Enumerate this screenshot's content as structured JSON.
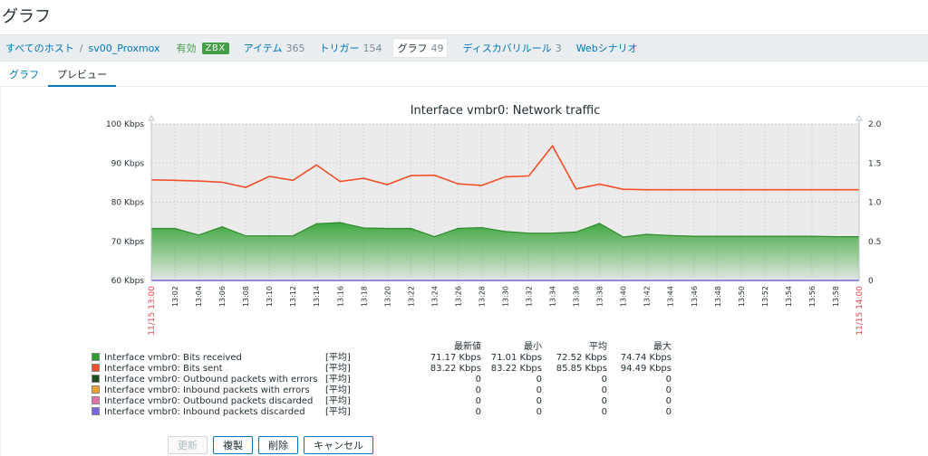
{
  "page_title": "グラフ",
  "breadcrumb": {
    "all_hosts": "すべてのホスト",
    "separator": "/",
    "host": "sv00_Proxmox",
    "status": "有効",
    "zbx": "ZBX"
  },
  "nav": [
    {
      "label": "アイテム",
      "count": "365",
      "active": false
    },
    {
      "label": "トリガー",
      "count": "154",
      "active": false
    },
    {
      "label": "グラフ",
      "count": "49",
      "active": true
    },
    {
      "label": "ディスカバリルール",
      "count": "3",
      "active": false
    },
    {
      "label": "Webシナリオ",
      "count": "",
      "active": false
    }
  ],
  "tabs": [
    {
      "label": "グラフ",
      "active": false
    },
    {
      "label": "プレビュー",
      "active": true
    }
  ],
  "chart_data": {
    "type": "area",
    "title": "Interface vmbr0: Network traffic",
    "x_start_label": "11/15 13:00",
    "x_end_label": "11/15 14:00",
    "x_ticks": [
      "13:02",
      "13:04",
      "13:06",
      "13:08",
      "13:10",
      "13:12",
      "13:14",
      "13:16",
      "13:18",
      "13:20",
      "13:22",
      "13:24",
      "13:26",
      "13:28",
      "13:30",
      "13:32",
      "13:34",
      "13:36",
      "13:38",
      "13:40",
      "13:42",
      "13:44",
      "13:46",
      "13:48",
      "13:50",
      "13:52",
      "13:54",
      "13:56",
      "13:58"
    ],
    "y_left_ticks": [
      "100 Kbps",
      "90 Kbps",
      "80 Kbps",
      "70 Kbps",
      "60 Kbps"
    ],
    "y_left_range": [
      60,
      100
    ],
    "y_right_ticks": [
      "2.0",
      "1.5",
      "1.0",
      "0.5",
      "0"
    ],
    "y_right_range": [
      0,
      2
    ],
    "x_minutes": [
      0,
      2,
      4,
      6,
      8,
      10,
      12,
      14,
      16,
      18,
      20,
      22,
      24,
      26,
      28,
      30,
      32,
      34,
      36,
      38,
      40,
      42,
      44,
      46,
      48,
      50,
      52,
      54,
      56,
      58,
      60
    ],
    "series": [
      {
        "name": "Interface vmbr0: Bits received",
        "color": "#2ca02c",
        "draw": "filled",
        "values": [
          73.3,
          73.3,
          71.6,
          73.7,
          71.4,
          71.4,
          71.4,
          74.5,
          74.8,
          73.4,
          73.3,
          73.3,
          71.2,
          73.3,
          73.5,
          72.5,
          72.1,
          72.1,
          72.4,
          74.6,
          71.1,
          71.8,
          71.5,
          71.3,
          71.3,
          71.3,
          71.3,
          71.3,
          71.3,
          71.2,
          71.2
        ]
      },
      {
        "name": "Interface vmbr0: Bits sent",
        "color": "#f4502a",
        "draw": "line",
        "values": [
          85.7,
          85.6,
          85.4,
          85.1,
          83.8,
          86.6,
          85.6,
          89.5,
          85.3,
          86.1,
          84.5,
          86.8,
          86.9,
          84.7,
          84.3,
          86.5,
          86.7,
          94.4,
          83.4,
          84.6,
          83.3,
          83.2,
          83.2,
          83.2,
          83.2,
          83.2,
          83.2,
          83.2,
          83.2,
          83.2,
          83.2
        ]
      }
    ],
    "legend": {
      "headers": [
        "最新値",
        "最小",
        "平均",
        "最大"
      ],
      "rows": [
        {
          "name": "Interface vmbr0: Bits received",
          "color": "#2ca02c",
          "fn": "[平均]",
          "last": "71.17 Kbps",
          "min": "71.01 Kbps",
          "avg": "72.52 Kbps",
          "max": "74.74 Kbps"
        },
        {
          "name": "Interface vmbr0: Bits sent",
          "color": "#f4502a",
          "fn": "[平均]",
          "last": "83.22 Kbps",
          "min": "83.22 Kbps",
          "avg": "85.85 Kbps",
          "max": "94.49 Kbps"
        },
        {
          "name": "Interface vmbr0: Outbound packets with errors",
          "color": "#1d4d1d",
          "fn": "[平均]",
          "last": "0",
          "min": "0",
          "avg": "0",
          "max": "0"
        },
        {
          "name": "Interface vmbr0: Inbound packets with errors",
          "color": "#f0a030",
          "fn": "[平均]",
          "last": "0",
          "min": "0",
          "avg": "0",
          "max": "0"
        },
        {
          "name": "Interface vmbr0: Outbound packets discarded",
          "color": "#e870a8",
          "fn": "[平均]",
          "last": "0",
          "min": "0",
          "avg": "0",
          "max": "0"
        },
        {
          "name": "Interface vmbr0: Inbound packets discarded",
          "color": "#7766dd",
          "fn": "[平均]",
          "last": "0",
          "min": "0",
          "avg": "0",
          "max": "0"
        }
      ]
    }
  },
  "buttons": {
    "update": "更新",
    "clone": "複製",
    "delete": "削除",
    "cancel": "キャンセル"
  }
}
